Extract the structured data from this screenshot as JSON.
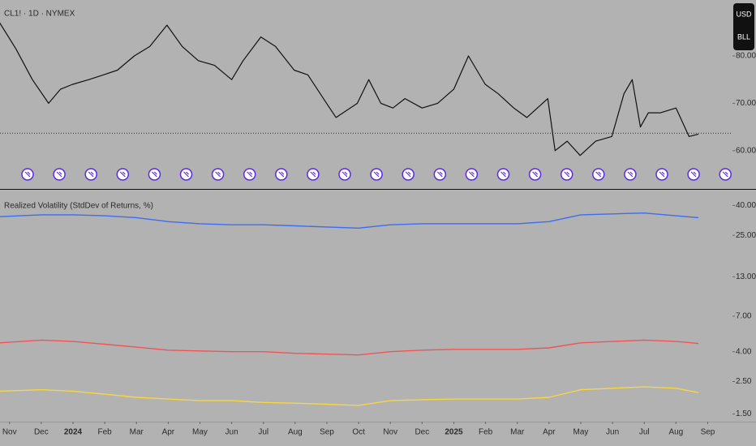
{
  "chart_data": [
    {
      "type": "line",
      "title": "CL1! · 1D · NYMEX",
      "currency_label": "USD",
      "unit_label": "BLL",
      "x": [
        -0.31,
        0.2,
        0.72,
        1.23,
        1.61,
        1.99,
        2.5,
        2.96,
        3.4,
        3.93,
        4.42,
        4.96,
        5.44,
        5.95,
        6.46,
        7.0,
        7.36,
        7.92,
        8.38,
        8.97,
        9.4,
        9.99,
        10.29,
        10.96,
        11.32,
        11.7,
        12.08,
        12.46,
        13.0,
        13.49,
        14.0,
        14.46,
        14.99,
        15.4,
        15.89,
        16.3,
        16.96,
        17.19,
        17.57,
        17.98,
        18.47,
        18.98,
        19.36,
        19.62,
        19.88,
        20.13,
        20.51,
        21.0,
        21.41,
        21.71
      ],
      "series": [
        {
          "color": "#111111",
          "values": [
            87,
            81.5,
            75,
            70,
            73,
            74,
            75,
            76,
            77,
            80,
            82,
            86.5,
            82,
            79,
            78,
            75,
            79,
            84,
            82,
            77,
            76,
            70,
            67,
            70,
            75,
            70,
            69,
            71,
            69,
            70,
            73,
            80,
            74,
            72,
            69,
            67,
            71,
            60,
            62,
            59,
            62,
            63,
            72,
            75,
            65,
            68,
            68,
            69,
            63,
            63.5
          ]
        }
      ],
      "price_line": 63.7,
      "xlim": [
        -0.3,
        22.78
      ],
      "ylim": [
        52.1,
        91.8
      ],
      "yticks": [
        {
          "value": 60,
          "label": "60.00"
        },
        {
          "value": 70,
          "label": "70.00"
        },
        {
          "value": 80,
          "label": "80.00"
        }
      ]
    },
    {
      "type": "line",
      "title": "Realized Volatility (StdDev of Returns, %)",
      "log_scale": true,
      "x": [
        -0.3,
        1,
        2,
        3,
        4,
        5,
        6,
        7,
        8,
        9,
        10,
        11,
        12,
        13,
        14,
        15,
        16,
        17,
        18,
        19,
        20,
        21,
        21.71
      ],
      "series": [
        {
          "color": "#3d6df0",
          "values": [
            33.5,
            34.5,
            34.5,
            34,
            33,
            31,
            30,
            29.5,
            29.5,
            29,
            28.5,
            28,
            29.5,
            30,
            30,
            30,
            30,
            31,
            34.5,
            35,
            35.5,
            34,
            33
          ]
        },
        {
          "color": "#f05454",
          "values": [
            4.6,
            4.8,
            4.7,
            4.5,
            4.3,
            4.1,
            4.05,
            4.0,
            4.0,
            3.9,
            3.85,
            3.8,
            4.0,
            4.1,
            4.15,
            4.15,
            4.15,
            4.25,
            4.6,
            4.7,
            4.8,
            4.7,
            4.55
          ]
        },
        {
          "color": "#f5d742",
          "values": [
            2.15,
            2.2,
            2.15,
            2.05,
            1.95,
            1.9,
            1.85,
            1.85,
            1.8,
            1.78,
            1.75,
            1.72,
            1.85,
            1.88,
            1.9,
            1.9,
            1.9,
            1.95,
            2.2,
            2.25,
            2.3,
            2.25,
            2.1
          ]
        }
      ],
      "xlim": [
        -0.3,
        22.78
      ],
      "ylim": [
        1.33,
        49.9
      ],
      "yticks": [
        {
          "value": 40,
          "label": "40.00"
        },
        {
          "value": 25,
          "label": "25.00"
        },
        {
          "value": 13,
          "label": "13.00"
        },
        {
          "value": 7,
          "label": "7.00"
        },
        {
          "value": 4,
          "label": "4.00"
        },
        {
          "value": 2.5,
          "label": "2.50"
        },
        {
          "value": 1.5,
          "label": "1.50"
        }
      ],
      "xticks": [
        {
          "value": 0,
          "label": "Nov"
        },
        {
          "value": 1,
          "label": "Dec"
        },
        {
          "value": 2,
          "label": "2024"
        },
        {
          "value": 3,
          "label": "Feb"
        },
        {
          "value": 4,
          "label": "Mar"
        },
        {
          "value": 5,
          "label": "Apr"
        },
        {
          "value": 6,
          "label": "May"
        },
        {
          "value": 7,
          "label": "Jun"
        },
        {
          "value": 8,
          "label": "Jul"
        },
        {
          "value": 9,
          "label": "Aug"
        },
        {
          "value": 10,
          "label": "Sep"
        },
        {
          "value": 11,
          "label": "Oct"
        },
        {
          "value": 12,
          "label": "Nov"
        },
        {
          "value": 13,
          "label": "Dec"
        },
        {
          "value": 14,
          "label": "2025"
        },
        {
          "value": 15,
          "label": "Feb"
        },
        {
          "value": 16,
          "label": "Mar"
        },
        {
          "value": 17,
          "label": "Apr"
        },
        {
          "value": 18,
          "label": "May"
        },
        {
          "value": 19,
          "label": "Jun"
        },
        {
          "value": 20,
          "label": "Jul"
        },
        {
          "value": 21,
          "label": "Aug"
        },
        {
          "value": 22,
          "label": "Sep"
        }
      ]
    }
  ]
}
